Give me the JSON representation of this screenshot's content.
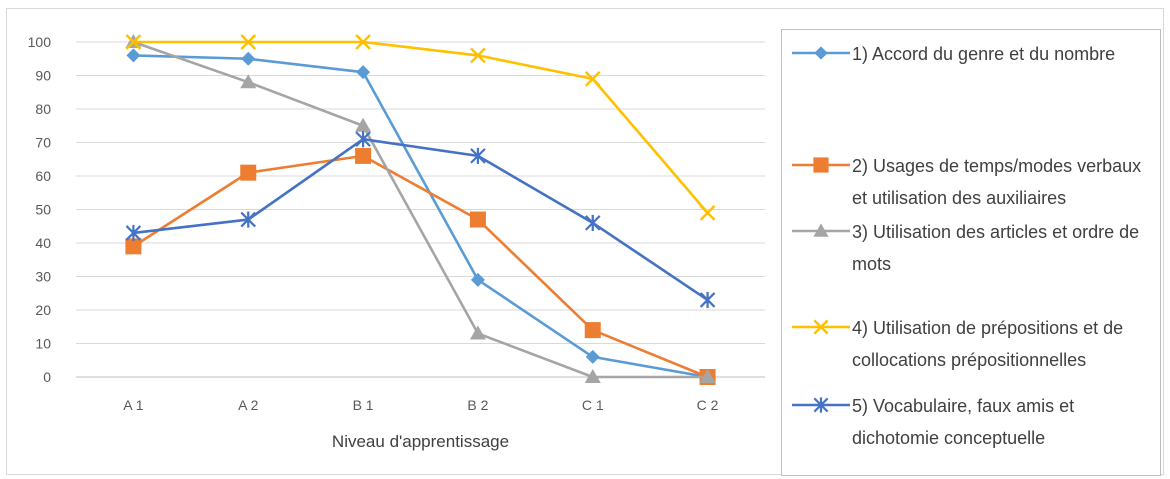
{
  "chart_data": {
    "type": "line",
    "xlabel": "Niveau d'apprentissage",
    "ylabel": "",
    "ylim": [
      0,
      100
    ],
    "yticks": [
      0,
      10,
      20,
      30,
      40,
      50,
      60,
      70,
      80,
      90,
      100
    ],
    "grid": true,
    "legend_position": "right",
    "categories": [
      "A 1",
      "A 2",
      "B 1",
      "B 2",
      "C 1",
      "C 2"
    ],
    "series": [
      {
        "name": "1) Accord du genre et du nombre",
        "color": "#5b9bd5",
        "marker": "diamond",
        "values": [
          96,
          95,
          91,
          29,
          6,
          0
        ]
      },
      {
        "name": "2) Usages de temps/modes verbaux et utilisation des auxiliaires",
        "color": "#ed7d31",
        "marker": "square",
        "values": [
          39,
          61,
          66,
          47,
          14,
          0
        ]
      },
      {
        "name": "3) Utilisation des articles et ordre de mots",
        "color": "#a5a5a5",
        "marker": "triangle",
        "values": [
          100,
          88,
          75,
          13,
          0,
          0
        ]
      },
      {
        "name": "4) Utilisation de prépositions et de collocations prépositionnelles",
        "color": "#ffc000",
        "marker": "x",
        "values": [
          100,
          100,
          100,
          96,
          89,
          49
        ]
      },
      {
        "name": "5) Vocabulaire, faux amis et dichotomie conceptuelle",
        "color": "#4472c4",
        "marker": "star",
        "values": [
          43,
          47,
          71,
          66,
          46,
          23
        ]
      }
    ]
  }
}
